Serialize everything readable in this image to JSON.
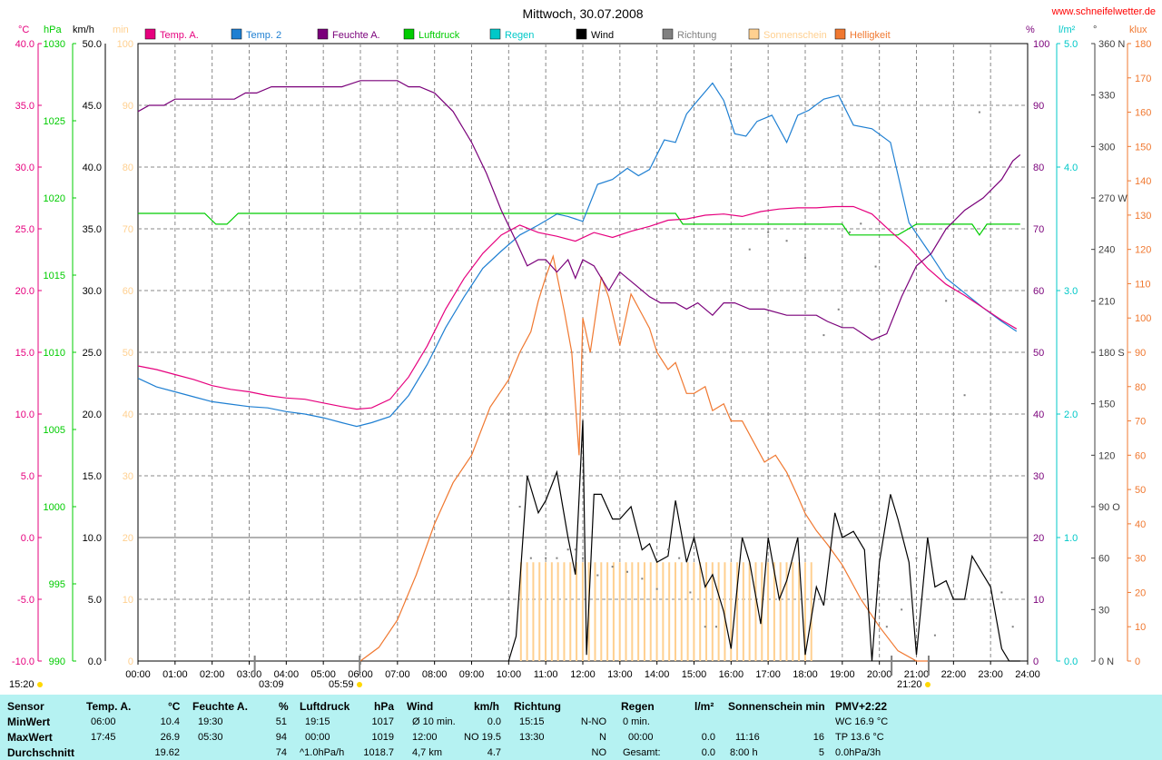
{
  "header": {
    "title": "Mittwoch, 30.07.2008",
    "site": "www.schneifelwetter.de"
  },
  "legend": [
    {
      "name": "Temp. A.",
      "color": "#e6007e"
    },
    {
      "name": "Temp. 2",
      "color": "#1e7fd2"
    },
    {
      "name": "Feuchte A.",
      "color": "#7a007a"
    },
    {
      "name": "Luftdruck",
      "color": "#00cc00"
    },
    {
      "name": "Regen",
      "color": "#00c8c8"
    },
    {
      "name": "Wind",
      "color": "#000000"
    },
    {
      "name": "Richtung",
      "color": "#808080"
    },
    {
      "name": "Sonnenschein",
      "color": "#ffd090"
    },
    {
      "name": "Helligkeit",
      "color": "#f07830"
    }
  ],
  "axes": {
    "temp": {
      "unit": "°C",
      "ticks": [
        "40.0",
        "35.0",
        "30.0",
        "25.0",
        "20.0",
        "15.0",
        "10.0",
        "5.0",
        "0.0",
        "-5.0",
        "-10.0"
      ],
      "color": "#e6007e"
    },
    "pressure": {
      "unit": "hPa",
      "ticks": [
        "1030",
        "1025",
        "1020",
        "1015",
        "1010",
        "1005",
        "1000",
        "995",
        "990"
      ],
      "color": "#00cc00"
    },
    "wind": {
      "unit": "km/h",
      "ticks": [
        "50.0",
        "45.0",
        "40.0",
        "35.0",
        "30.0",
        "25.0",
        "20.0",
        "15.0",
        "10.0",
        "5.0",
        "0.0"
      ],
      "color": "#000000"
    },
    "sunmin": {
      "unit": "min",
      "ticks": [
        "100",
        "90",
        "80",
        "70",
        "60",
        "50",
        "40",
        "30",
        "20",
        "10",
        "0"
      ],
      "color": "#ffd090"
    },
    "humidity": {
      "unit": "%",
      "ticks": [
        "100",
        "90",
        "80",
        "70",
        "60",
        "50",
        "40",
        "30",
        "20",
        "10",
        "0"
      ],
      "color": "#7a007a"
    },
    "rain": {
      "unit": "l/m²",
      "ticks": [
        "5.0",
        "4.0",
        "3.0",
        "2.0",
        "1.0",
        "0.0"
      ],
      "color": "#00c8c8"
    },
    "direction": {
      "unit": "°",
      "ticks": [
        "360 N",
        "330",
        "300",
        "270 W",
        "240",
        "210",
        "180 S",
        "150",
        "120",
        "90 O",
        "60",
        "30",
        "0 N"
      ],
      "color": "#404040"
    },
    "lux": {
      "unit": "klux",
      "ticks": [
        "180",
        "170",
        "160",
        "150",
        "140",
        "130",
        "120",
        "110",
        "100",
        "90",
        "80",
        "70",
        "60",
        "50",
        "40",
        "30",
        "20",
        "10",
        "0"
      ],
      "color": "#f07830"
    },
    "time": {
      "ticks": [
        "00:00",
        "01:00",
        "02:00",
        "03:00",
        "04:00",
        "05:00",
        "06:00",
        "07:00",
        "08:00",
        "09:00",
        "10:00",
        "11:00",
        "12:00",
        "13:00",
        "14:00",
        "15:00",
        "16:00",
        "17:00",
        "18:00",
        "19:00",
        "20:00",
        "21:00",
        "22:00",
        "23:00",
        "24:00"
      ]
    }
  },
  "markers": {
    "current_time": "15:20",
    "moonrise": "03:09",
    "sunrise": "05:59",
    "sunset": "21:20"
  },
  "chart_data": {
    "type": "line",
    "title": "Mittwoch, 30.07.2008",
    "xlim": [
      0,
      24
    ],
    "series": [
      {
        "name": "Temp. A.",
        "unit": "°C",
        "ylim": [
          -10,
          40
        ],
        "x": [
          0,
          0.5,
          1,
          1.5,
          2,
          2.5,
          3,
          3.5,
          4,
          4.5,
          5,
          5.5,
          5.9,
          6.3,
          6.8,
          7.3,
          7.8,
          8.3,
          8.8,
          9.3,
          9.8,
          10.3,
          10.8,
          11.3,
          11.8,
          12.3,
          12.8,
          13.3,
          13.8,
          14.3,
          14.8,
          15.3,
          15.8,
          16.3,
          16.8,
          17.3,
          17.8,
          18.3,
          18.8,
          19.3,
          19.8,
          20.3,
          20.8,
          21.3,
          21.8,
          22.3,
          22.8,
          23.3,
          23.7
        ],
        "y": [
          13.9,
          13.6,
          13.2,
          12.8,
          12.3,
          12.0,
          11.8,
          11.5,
          11.3,
          11.2,
          10.9,
          10.6,
          10.4,
          10.5,
          11.2,
          13.0,
          15.5,
          18.5,
          21.0,
          23.0,
          24.5,
          25.3,
          24.7,
          24.4,
          24.0,
          24.7,
          24.3,
          24.8,
          25.2,
          25.7,
          25.8,
          26.1,
          26.2,
          26.0,
          26.4,
          26.6,
          26.7,
          26.7,
          26.8,
          26.8,
          26.2,
          24.8,
          23.5,
          21.8,
          20.5,
          19.6,
          18.6,
          17.6,
          16.9
        ]
      },
      {
        "name": "Temp. 2",
        "unit": "°C",
        "ylim": [
          -10,
          40
        ],
        "x": [
          0,
          0.5,
          1,
          1.5,
          2,
          2.5,
          3,
          3.5,
          4,
          4.5,
          5,
          5.5,
          5.9,
          6.3,
          6.8,
          7.3,
          7.8,
          8.3,
          8.8,
          9.3,
          9.8,
          10.3,
          10.8,
          11.3,
          11.6,
          12,
          12.4,
          12.8,
          13.2,
          13.5,
          13.8,
          14.2,
          14.5,
          14.8,
          15.1,
          15.5,
          15.8,
          16.1,
          16.4,
          16.7,
          17.1,
          17.5,
          17.8,
          18.1,
          18.5,
          18.9,
          19.3,
          19.8,
          20.3,
          20.8,
          21.3,
          21.8,
          22.3,
          22.8,
          23.3,
          23.7
        ],
        "y": [
          12.9,
          12.2,
          11.8,
          11.4,
          11.0,
          10.8,
          10.6,
          10.5,
          10.2,
          10.0,
          9.7,
          9.3,
          9.0,
          9.3,
          9.8,
          11.5,
          14.0,
          17.0,
          19.5,
          21.8,
          23.2,
          24.5,
          25.3,
          26.2,
          26.0,
          25.6,
          28.6,
          29.0,
          29.9,
          29.3,
          29.8,
          32.2,
          32.0,
          34.3,
          35.4,
          36.8,
          35.4,
          32.7,
          32.5,
          33.7,
          34.2,
          32.0,
          34.2,
          34.6,
          35.5,
          35.8,
          33.4,
          33.1,
          32.0,
          25.5,
          23.3,
          21.0,
          19.8,
          18.6,
          17.5,
          16.7
        ]
      },
      {
        "name": "Feuchte A.",
        "unit": "%",
        "ylim": [
          0,
          100
        ],
        "x": [
          0,
          0.3,
          0.7,
          1,
          1.5,
          2,
          2.3,
          2.6,
          2.9,
          3.2,
          3.6,
          4.3,
          5,
          5.5,
          6,
          6.5,
          7,
          7.3,
          7.6,
          8,
          8.5,
          9,
          9.4,
          9.8,
          10.2,
          10.5,
          10.8,
          11,
          11.3,
          11.6,
          11.8,
          12,
          12.3,
          12.7,
          13,
          13.4,
          13.8,
          14.1,
          14.5,
          14.8,
          15.1,
          15.5,
          15.8,
          16.1,
          16.5,
          16.9,
          17.5,
          18,
          18.3,
          18.6,
          19,
          19.3,
          19.8,
          20.2,
          20.6,
          21,
          21.4,
          21.8,
          22.3,
          22.8,
          23.3,
          23.6,
          23.8
        ],
        "y": [
          89,
          90,
          90,
          91,
          91,
          91,
          91,
          91,
          92,
          92,
          93,
          93,
          93,
          93,
          94,
          94,
          94,
          93,
          93,
          92,
          89,
          84,
          79,
          73,
          68,
          64,
          65,
          65,
          63,
          65,
          62,
          65,
          64,
          60,
          63,
          61,
          59,
          58,
          58,
          57,
          58,
          56,
          58,
          58,
          57,
          57,
          56,
          56,
          56,
          55,
          54,
          54,
          52,
          53,
          59,
          64,
          66,
          70,
          73,
          75,
          78,
          81,
          82
        ]
      },
      {
        "name": "Luftdruck",
        "unit": "hPa",
        "ylim": [
          990,
          1030
        ],
        "x": [
          0,
          1,
          1.8,
          2.1,
          2.4,
          2.7,
          3,
          4,
          5,
          6,
          7,
          8,
          9,
          10,
          11,
          12,
          13,
          14,
          14.5,
          14.7,
          15,
          16,
          17,
          18,
          19,
          19.2,
          19.5,
          20,
          20.5,
          21,
          21.5,
          22,
          22.5,
          22.7,
          22.9,
          23.2,
          23.5,
          23.8
        ],
        "y": [
          1019,
          1019,
          1019,
          1018.3,
          1018.3,
          1019,
          1019,
          1019,
          1019,
          1019,
          1019,
          1019,
          1019,
          1019,
          1019,
          1019,
          1019,
          1019,
          1019,
          1018.3,
          1018.3,
          1018.3,
          1018.3,
          1018.3,
          1018.3,
          1017.6,
          1017.6,
          1017.6,
          1017.6,
          1018.3,
          1018.3,
          1018.3,
          1018.3,
          1017.6,
          1018.3,
          1018.3,
          1018.3,
          1018.3
        ]
      },
      {
        "name": "Wind",
        "unit": "km/h",
        "ylim": [
          0,
          50
        ],
        "x": [
          10,
          10.2,
          10.5,
          10.8,
          11,
          11.3,
          11.6,
          11.8,
          12,
          12.1,
          12.3,
          12.5,
          12.8,
          13,
          13.3,
          13.6,
          13.8,
          14,
          14.3,
          14.5,
          14.8,
          15,
          15.3,
          15.5,
          15.8,
          16,
          16.3,
          16.5,
          16.8,
          17,
          17.3,
          17.5,
          17.8,
          18,
          18.3,
          18.5,
          18.8,
          19,
          19.3,
          19.6,
          19.8,
          20,
          20.3,
          20.5,
          20.8,
          21,
          21.3,
          21.5,
          21.8,
          22,
          22.3,
          22.5,
          22.8,
          23,
          23.3,
          23.5,
          23.8
        ],
        "y": [
          0,
          2,
          15,
          12,
          13,
          15.3,
          10,
          7,
          19.5,
          0.5,
          13.5,
          13.5,
          11.5,
          11.5,
          12.5,
          9,
          9.5,
          8,
          8.5,
          13,
          8,
          10,
          6,
          7,
          4,
          1,
          10,
          8,
          3,
          10,
          5,
          6.5,
          10,
          0.5,
          6,
          4.5,
          12,
          10,
          10.5,
          9,
          0,
          8,
          13.5,
          11.5,
          8,
          0.5,
          10,
          6,
          6.5,
          5,
          5,
          8.5,
          7,
          6,
          1,
          0,
          0
        ]
      },
      {
        "name": "Helligkeit",
        "unit": "klux",
        "ylim": [
          0,
          180
        ],
        "x": [
          6,
          6.5,
          7,
          7.5,
          8,
          8.5,
          9,
          9.5,
          10,
          10.3,
          10.6,
          10.8,
          11,
          11.2,
          11.5,
          11.7,
          11.9,
          12,
          12.2,
          12.5,
          12.7,
          13,
          13.3,
          13.6,
          13.8,
          14,
          14.3,
          14.5,
          14.8,
          15,
          15.3,
          15.5,
          15.8,
          16,
          16.3,
          16.6,
          16.9,
          17.2,
          17.5,
          17.8,
          18,
          18.3,
          18.6,
          19,
          19.5,
          20,
          20.5,
          21,
          21.3
        ],
        "y": [
          0,
          4,
          12,
          25,
          40,
          52,
          60,
          74,
          82,
          90,
          96,
          105,
          112,
          118,
          102,
          90,
          60,
          100,
          90,
          112,
          106,
          92,
          107,
          101,
          97,
          90,
          85,
          87,
          78,
          78,
          80,
          73,
          75,
          70,
          70,
          64,
          58,
          60,
          55,
          48,
          43,
          38,
          34,
          28,
          18,
          10,
          3,
          0,
          0
        ]
      }
    ],
    "sunshine": {
      "name": "Sonnenschein",
      "unit": "min",
      "start": 10.33,
      "end": 18.25,
      "step": 0.1667,
      "value": 16
    },
    "gray_dots": {
      "name": "Richtung",
      "unit": "°",
      "x": [
        10.3,
        10.6,
        11,
        11.3,
        11.6,
        11.8,
        12,
        12.4,
        12.8,
        13.2,
        13.6,
        14,
        14.3,
        14.6,
        14.9,
        15.3,
        15.6,
        16,
        16.5,
        17,
        17.5,
        18,
        18.5,
        18.9,
        19.2,
        19.5,
        19.9,
        20.2,
        20.6,
        21,
        21.5,
        21.8,
        22.3,
        22.7,
        23.3,
        23.6
      ],
      "y": [
        90,
        60,
        60,
        60,
        65,
        65,
        60,
        50,
        55,
        52,
        48,
        42,
        65,
        60,
        40,
        20,
        20,
        345,
        240,
        250,
        245,
        235,
        190,
        205,
        250,
        255,
        230,
        20,
        30,
        60,
        15,
        210,
        155,
        320,
        40,
        20
      ]
    }
  },
  "table": {
    "headers": {
      "sensor": "Sensor",
      "temp": "Temp. A.",
      "temp_unit": "°C",
      "hum": "Feuchte A.",
      "hum_unit": "%",
      "press": "Luftdruck",
      "press_unit": "hPa",
      "wind": "Wind",
      "wind_unit": "km/h",
      "dir": "Richtung",
      "rain": "Regen",
      "rain_unit": "l/m²",
      "sun": "Sonnenschein min",
      "pmv": "PMV+2:22"
    },
    "rows": {
      "min_label": "MinWert",
      "max_label": "MaxWert",
      "avg_label": "Durchschnitt"
    },
    "temp": {
      "min_time": "06:00",
      "min_val": "10.4",
      "max_time": "17:45",
      "max_val": "26.9",
      "avg_val": "19.62"
    },
    "hum": {
      "min_time": "19:30",
      "min_val": "51",
      "max_time": "05:30",
      "max_val": "94",
      "avg_val": "74"
    },
    "press": {
      "min_time": "19:15",
      "min_val": "1017",
      "max_time": "00:00",
      "max_val": "1019",
      "avg_time": "^1.0hPa/h",
      "avg_val": "1018.7"
    },
    "wind": {
      "min_label": "Ø 10 min.",
      "min_val": "0.0",
      "max_time": "12:00",
      "max_val": "NO 19.5",
      "avg_label": "4,7 km",
      "avg_val": "4.7"
    },
    "dir": {
      "min_time": "15:15",
      "min_val": "N-NO",
      "max_time": "13:30",
      "max_val": "N",
      "avg_val": "NO"
    },
    "rain": {
      "min_label": "0 min.",
      "max_time": "00:00",
      "max_val": "0.0",
      "avg_label": "Gesamt:",
      "avg_val": "0.0",
      "min_val": "0.0"
    },
    "sun": {
      "max_time": "11:16",
      "max_val": "16",
      "avg_label": "8:00 h",
      "avg_val": "5"
    },
    "pmv": {
      "line1": "WC 16.9 °C",
      "line2": "TP 13.6 °C",
      "line3": "0.0hPa/3h"
    }
  }
}
